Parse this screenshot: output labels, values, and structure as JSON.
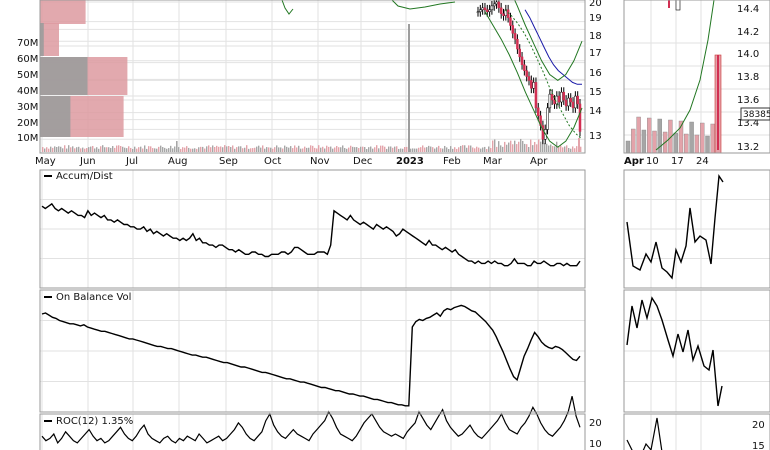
{
  "chart_data": {
    "type": "line",
    "panels": {
      "price": {
        "right_ticks": [
          13,
          14,
          15,
          16,
          17,
          18,
          19,
          20
        ],
        "ylim": [
          12.3,
          20.1
        ],
        "volume_ticks": [
          "10M",
          "20M",
          "30M",
          "40M",
          "50M",
          "60M",
          "70M"
        ],
        "volume_lim": [
          0,
          90
        ],
        "volume_by_price": [
          {
            "price": 19.7,
            "down": 0,
            "up": 48
          },
          {
            "price": 17.4,
            "down": 4,
            "up": 20
          },
          {
            "price": 15.1,
            "down": 50,
            "up": 92
          },
          {
            "price": 13.3,
            "down": 32,
            "up": 88
          }
        ],
        "spike_volume": 78
      },
      "accum_dist": {
        "label": "Accum/Dist",
        "ylim": [
          0,
          100
        ]
      },
      "obv": {
        "label": "On Balance Vol",
        "ylim": [
          0,
          100
        ]
      },
      "roc": {
        "label": "ROC(12) 1.35%",
        "right_ticks": [
          10,
          20
        ],
        "ylim": [
          -5,
          22
        ]
      }
    },
    "x_labels": [
      "May",
      "Jun",
      "Jul",
      "Aug",
      "Sep",
      "Oct",
      "Nov",
      "Dec",
      "2023",
      "Feb",
      "Mar",
      "Apr"
    ],
    "series": [
      {
        "y": [
          19.5,
          19.6,
          19.7,
          19.6,
          19.5,
          19.6,
          19.8,
          19.9,
          20.0,
          19.7,
          19.4,
          19.3,
          19.6,
          19.2,
          18.8,
          18.4,
          18.1,
          17.6,
          17.2,
          16.8,
          16.5,
          16.2,
          16.0,
          15.6,
          15.9,
          14.6,
          14.2,
          13.7,
          13.0,
          13.5,
          14.6,
          15.3,
          15.0,
          14.8,
          15.2,
          14.9,
          15.4,
          15.0,
          14.7,
          15.1,
          14.9,
          14.6,
          15.2,
          14.8,
          13.4
        ]
      },
      {
        "y": [
          19.6,
          19.2,
          18.7,
          18.2,
          17.7,
          17.2,
          16.8,
          16.5,
          16.3,
          16.1,
          15.9,
          15.8,
          15.8
        ]
      },
      {
        "y": [
          19.6,
          19.3,
          18.9,
          18.4,
          17.8,
          17.1,
          16.4,
          15.6,
          14.9,
          14.3,
          13.7,
          13.3,
          13.0
        ]
      },
      {
        "y": [
          19.5,
          18.8,
          18.1,
          17.3,
          16.4,
          15.4,
          14.5,
          13.6,
          12.9,
          12.6,
          12.9,
          13.6,
          14.6
        ]
      },
      {
        "y": [
          34,
          33,
          34,
          35,
          33,
          32,
          33,
          32,
          31,
          32,
          31,
          30,
          30,
          29,
          32,
          30,
          31,
          30,
          29,
          30,
          28,
          28,
          27,
          28,
          27,
          26,
          26,
          25,
          25,
          24,
          24,
          25,
          23,
          24,
          22,
          23,
          22,
          21,
          22,
          21,
          20,
          20,
          19,
          20,
          19,
          20,
          22,
          19,
          20,
          18,
          18,
          17,
          17,
          16,
          17,
          17,
          16,
          15,
          15,
          14,
          15,
          14,
          13,
          13,
          14,
          14,
          13,
          13,
          12,
          12,
          13,
          13,
          13,
          14,
          14,
          13,
          14,
          16,
          16,
          15,
          14,
          13,
          13,
          13,
          14,
          14,
          14,
          13,
          17,
          32,
          31,
          30,
          29,
          28,
          30,
          28,
          27,
          26,
          27,
          26,
          25,
          24,
          26,
          25,
          24,
          25,
          24,
          23,
          21,
          22,
          24,
          23,
          22,
          21,
          20,
          19,
          18,
          17,
          19,
          17,
          17,
          16,
          15,
          16,
          15,
          14,
          15,
          13,
          12,
          11,
          10,
          10,
          9,
          10,
          9,
          9,
          10,
          9,
          10,
          9,
          9,
          8,
          8,
          9,
          11,
          9,
          9,
          9,
          8,
          8,
          10,
          9,
          9,
          10,
          9,
          8,
          8,
          9,
          9,
          8,
          9,
          8,
          8,
          8,
          10
        ]
      },
      {
        "y": [
          87,
          88,
          86,
          84,
          83,
          81,
          80,
          79,
          78,
          78,
          77,
          76,
          77,
          75,
          74,
          73,
          72,
          71,
          71,
          70,
          69,
          68,
          67,
          66,
          65,
          64,
          64,
          63,
          62,
          61,
          60,
          59,
          58,
          57,
          57,
          56,
          55,
          55,
          54,
          53,
          52,
          51,
          50,
          49,
          49,
          48,
          47,
          47,
          46,
          45,
          44,
          43,
          42,
          42,
          41,
          40,
          39,
          38,
          38,
          37,
          36,
          35,
          34,
          33,
          33,
          32,
          31,
          30,
          29,
          28,
          27,
          27,
          26,
          25,
          24,
          24,
          23,
          22,
          21,
          20,
          19,
          19,
          18,
          17,
          16,
          16,
          15,
          14,
          13,
          13,
          12,
          11,
          11,
          10,
          9,
          8,
          8,
          7,
          6,
          5,
          5,
          4,
          3,
          3,
          2,
          2,
          75,
          80,
          82,
          81,
          83,
          84,
          86,
          88,
          85,
          90,
          92,
          91,
          93,
          94,
          95,
          94,
          92,
          90,
          89,
          86,
          83,
          80,
          76,
          72,
          66,
          59,
          52,
          44,
          36,
          29,
          26,
          37,
          48,
          55,
          63,
          70,
          66,
          61,
          58,
          56,
          55,
          57,
          56,
          54,
          51,
          48,
          45,
          44,
          48
        ]
      },
      {
        "y": [
          3,
          1,
          2,
          4,
          0,
          2,
          5,
          3,
          1,
          0,
          2,
          4,
          6,
          3,
          1,
          2,
          0,
          1,
          3,
          5,
          7,
          4,
          2,
          1,
          3,
          6,
          8,
          4,
          2,
          1,
          0,
          2,
          3,
          1,
          0,
          2,
          1,
          3,
          2,
          1,
          4,
          2,
          0,
          1,
          2,
          3,
          1,
          2,
          4,
          6,
          9,
          7,
          4,
          2,
          1,
          3,
          5,
          10,
          13,
          8,
          5,
          3,
          2,
          4,
          6,
          4,
          3,
          2,
          1,
          4,
          6,
          8,
          10,
          14,
          11,
          7,
          4,
          3,
          2,
          1,
          3,
          6,
          9,
          11,
          13,
          10,
          7,
          5,
          4,
          3,
          4,
          3,
          2,
          5,
          7,
          9,
          14,
          11,
          8,
          6,
          9,
          12,
          15,
          10,
          7,
          5,
          3,
          4,
          6,
          8,
          5,
          3,
          2,
          4,
          6,
          8,
          10,
          13,
          9,
          6,
          5,
          4,
          7,
          9,
          12,
          16,
          13,
          9,
          6,
          4,
          3,
          5,
          7,
          10,
          14,
          21,
          12,
          7
        ]
      }
    ]
  }
}
